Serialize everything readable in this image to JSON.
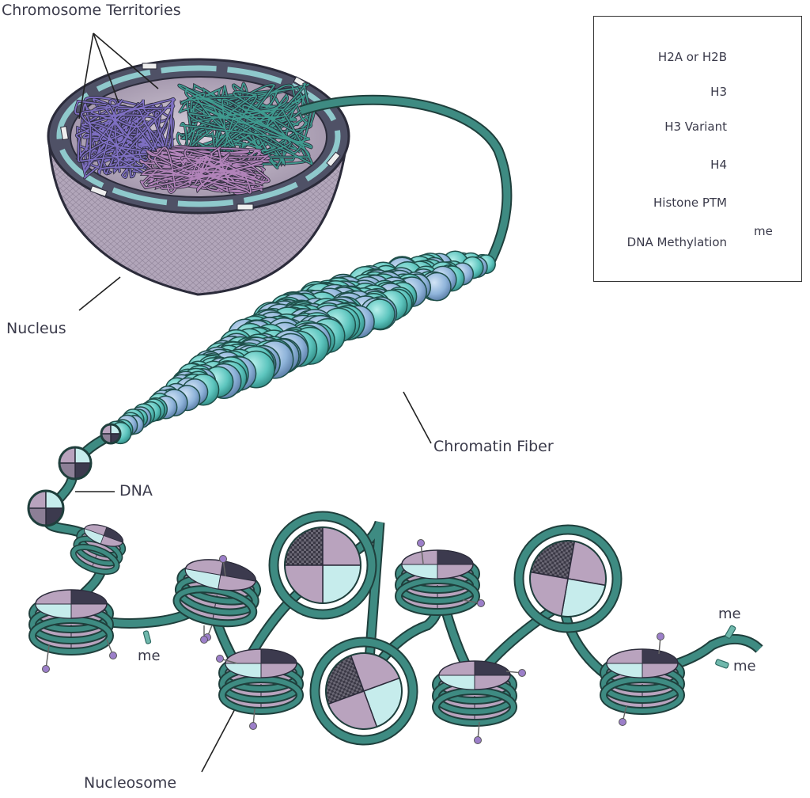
{
  "labels": {
    "chromosome_territories": "Chromosome Territories",
    "nucleus": "Nucleus",
    "chromatin_fiber": "Chromatin Fiber",
    "dna": "DNA",
    "nucleosome": "Nucleosome"
  },
  "legend": {
    "items": [
      {
        "label": "H2A or H2B",
        "icon": "h2a-h2b-histone-icon",
        "color": "#b9a3be"
      },
      {
        "label": "H3",
        "icon": "h3-histone-icon",
        "color": "#3c3a4e"
      },
      {
        "label": "H3 Variant",
        "icon": "h3-variant-histone-icon",
        "color": "#55535f"
      },
      {
        "label": "H4",
        "icon": "h4-histone-icon",
        "color": "#c6ecec"
      },
      {
        "label": "Histone PTM",
        "icon": "ptm-lollipop-icon",
        "color": "#9c7fc9"
      },
      {
        "label": "DNA Methylation",
        "icon": "methylation-tag-icon",
        "color": "#6fb8ac"
      }
    ],
    "me_label": "me"
  },
  "me_tags": [
    "me",
    "me",
    "me"
  ],
  "colors": {
    "dna": "#2f6b64",
    "fiber_teal": "#5fc7c0",
    "fiber_blue": "#8db3d8",
    "nucleus_shell": "#b2a6ba",
    "h2a_h2b": "#b9a3be",
    "h3": "#3c3a4e",
    "h4": "#c6ecec"
  }
}
